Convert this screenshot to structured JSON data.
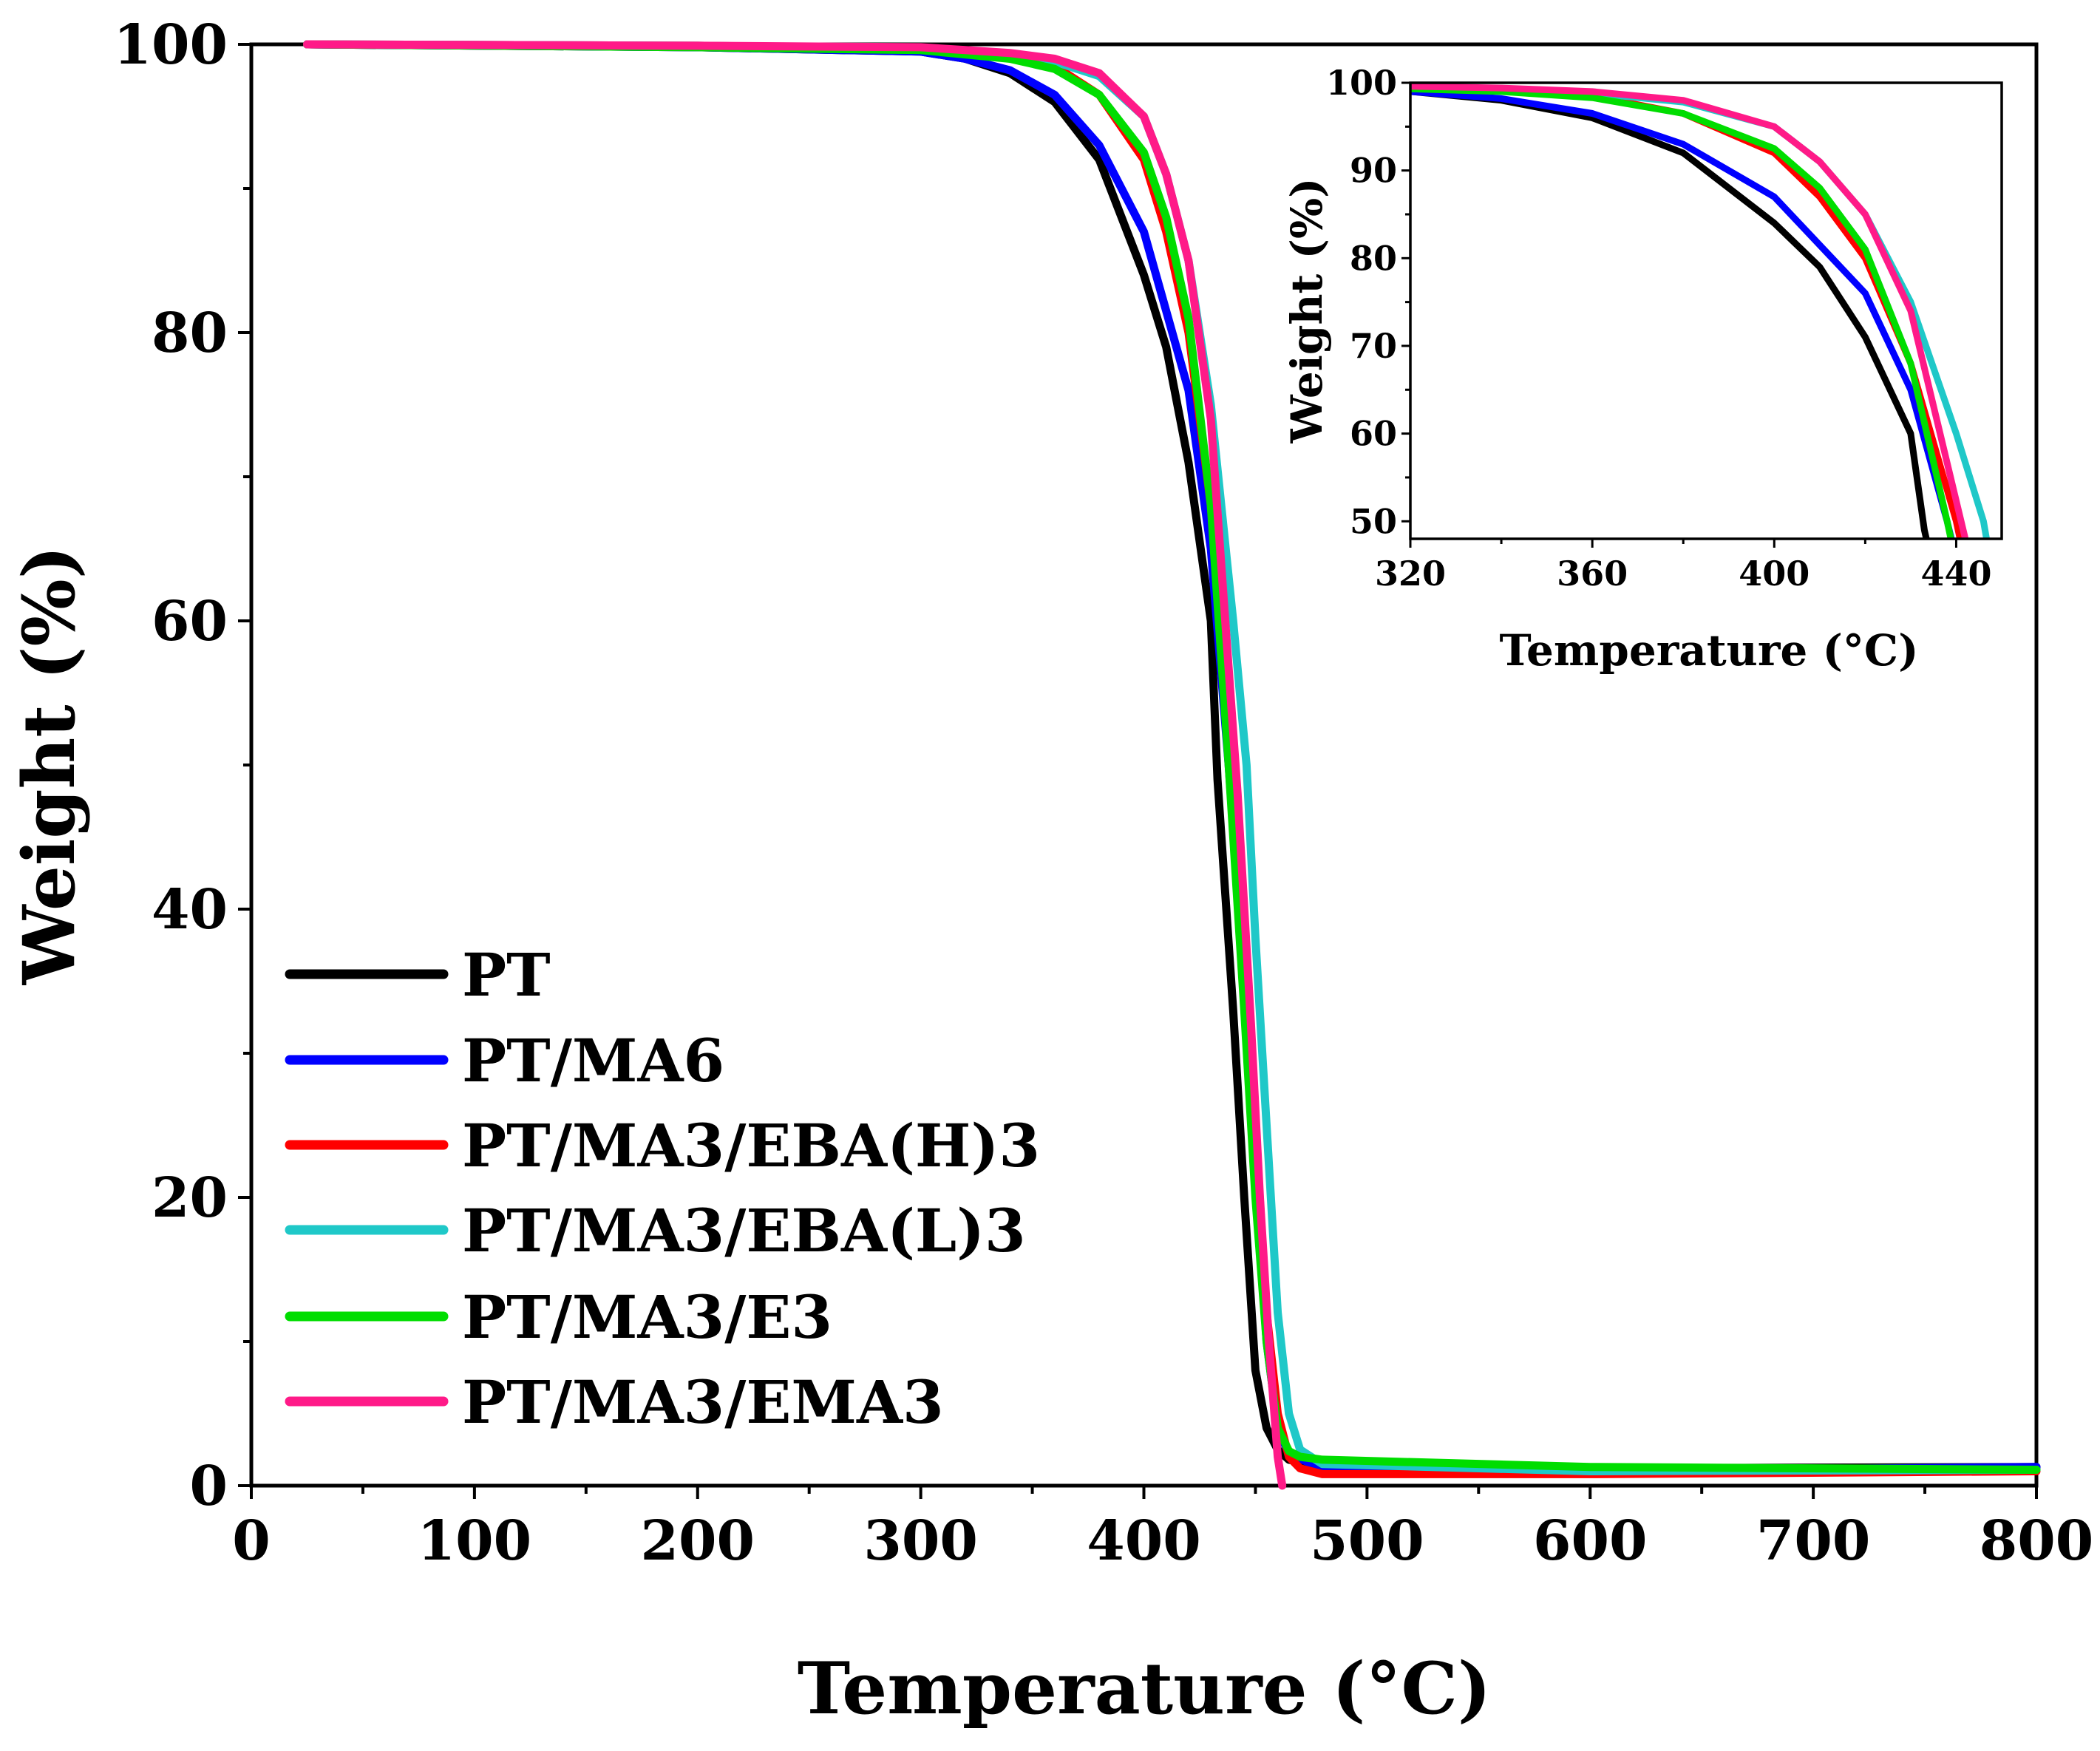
{
  "chart_data": [
    {
      "id": "main",
      "type": "line",
      "title": "",
      "xlabel": "Temperature (°C)",
      "ylabel": "Weight (%)",
      "xlim": [
        0,
        800
      ],
      "ylim": [
        0,
        100
      ],
      "xticks": [
        0,
        100,
        200,
        300,
        400,
        500,
        600,
        700,
        800
      ],
      "xtick_labels": [
        "0",
        "100",
        "200",
        "300",
        "400",
        "500",
        "600",
        "700",
        "800"
      ],
      "yticks": [
        0,
        20,
        40,
        60,
        80,
        100
      ],
      "ytick_labels": [
        "0",
        "20",
        "40",
        "60",
        "80",
        "100"
      ],
      "legend_position": "bottom-left",
      "series": [
        {
          "name": "PT",
          "color": "#000000",
          "x": [
            25,
            200,
            300,
            320,
            340,
            360,
            380,
            400,
            410,
            420,
            430,
            433,
            440,
            445,
            450,
            455,
            460,
            465,
            480,
            600,
            800
          ],
          "y": [
            100,
            99.8,
            99.5,
            99,
            98,
            96,
            92,
            84,
            79,
            71,
            60,
            49,
            33,
            20,
            8,
            4,
            2.5,
            1.8,
            1.4,
            1.2,
            1.3
          ]
        },
        {
          "name": "PT/MA6",
          "color": "#0000ff",
          "x": [
            25,
            200,
            300,
            320,
            340,
            360,
            380,
            400,
            420,
            430,
            438,
            445,
            450,
            455,
            460,
            465,
            480,
            600,
            800
          ],
          "y": [
            100,
            99.8,
            99.5,
            99,
            98.2,
            96.5,
            93,
            87,
            76,
            65,
            50,
            35,
            22,
            10,
            4,
            2.2,
            1.2,
            1,
            1.3
          ]
        },
        {
          "name": "PT/MA3/EBA(H)3",
          "color": "#ff0000",
          "x": [
            25,
            200,
            300,
            320,
            340,
            360,
            380,
            400,
            410,
            420,
            430,
            440,
            445,
            450,
            455,
            460,
            465,
            470,
            480,
            600,
            800
          ],
          "y": [
            100,
            99.9,
            99.7,
            99.5,
            99.2,
            98.5,
            96.5,
            92,
            87,
            80,
            68,
            50,
            38,
            25,
            12,
            5,
            2,
            1.2,
            0.8,
            0.8,
            1
          ]
        },
        {
          "name": "PT/MA3/EBA(L)3",
          "color": "#1fc8c8",
          "x": [
            25,
            200,
            300,
            320,
            340,
            360,
            380,
            400,
            410,
            420,
            430,
            440,
            446,
            450,
            455,
            460,
            465,
            470,
            480,
            600,
            800
          ],
          "y": [
            100,
            99.9,
            99.7,
            99.5,
            99.3,
            98.8,
            97.8,
            95,
            91,
            85,
            75,
            60,
            50,
            38,
            25,
            12,
            5,
            2.5,
            1.5,
            1,
            1.1
          ]
        },
        {
          "name": "PT/MA3/E3",
          "color": "#00dd00",
          "x": [
            25,
            200,
            300,
            320,
            340,
            360,
            380,
            400,
            410,
            420,
            430,
            438,
            445,
            450,
            455,
            460,
            465,
            470,
            480,
            600,
            800
          ],
          "y": [
            100,
            99.8,
            99.6,
            99.3,
            99,
            98.3,
            96.5,
            92.5,
            88,
            81,
            68,
            50,
            33,
            20,
            10,
            4,
            2.4,
            2,
            1.8,
            1.3,
            1.1
          ]
        },
        {
          "name": "PT/MA3/EMA3",
          "color": "#ff1a88",
          "x": [
            25,
            200,
            300,
            320,
            340,
            360,
            380,
            400,
            410,
            420,
            430,
            442,
            448,
            452,
            456,
            460,
            462
          ],
          "y": [
            100,
            99.9,
            99.8,
            99.6,
            99.4,
            99,
            98,
            95,
            91,
            85,
            74,
            48,
            32,
            20,
            10,
            2,
            0
          ]
        }
      ]
    },
    {
      "id": "inset",
      "type": "line",
      "title": "",
      "xlabel": "Temperature (°C)",
      "ylabel": "Weight (%)",
      "xlim": [
        320,
        450
      ],
      "ylim": [
        48,
        100
      ],
      "xticks": [
        320,
        360,
        400,
        440
      ],
      "xtick_labels": [
        "320",
        "360",
        "400",
        "440"
      ],
      "yticks": [
        50,
        60,
        70,
        80,
        90,
        100
      ],
      "ytick_labels": [
        "50",
        "60",
        "70",
        "80",
        "90",
        "100"
      ]
    }
  ]
}
